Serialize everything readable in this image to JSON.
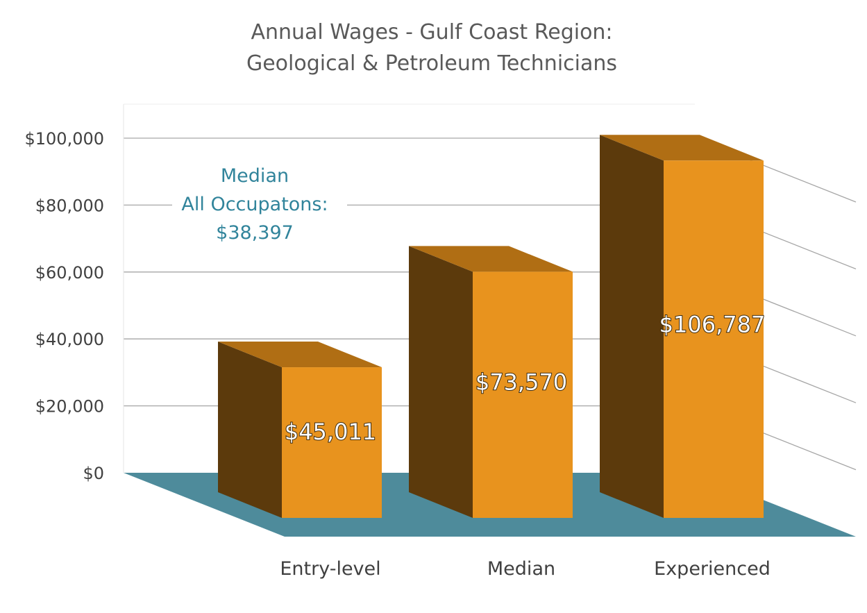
{
  "chart_data": {
    "type": "bar",
    "title_lines": [
      "Annual Wages - Gulf Coast Region:",
      "Geological & Petroleum Technicians"
    ],
    "categories": [
      "Entry-level",
      "Median",
      "Experienced"
    ],
    "values": [
      45011,
      73570,
      106787
    ],
    "value_labels": [
      "$45,011",
      "$73,570",
      "$106,787"
    ],
    "y_ticks": [
      "$0",
      "$20,000",
      "$40,000",
      "$60,000",
      "$80,000",
      "$100,000"
    ],
    "ylim": [
      0,
      100000
    ],
    "grid": true,
    "style": "3d",
    "annotation": {
      "lines": [
        "Median",
        "All Occupatons:",
        "$38,397"
      ]
    },
    "colors": {
      "bar_front": "#e8931e",
      "bar_side": "#5c3a0c",
      "bar_top": "#b06e14",
      "floor": "#4e8b9b",
      "annotation": "#31849b"
    }
  }
}
